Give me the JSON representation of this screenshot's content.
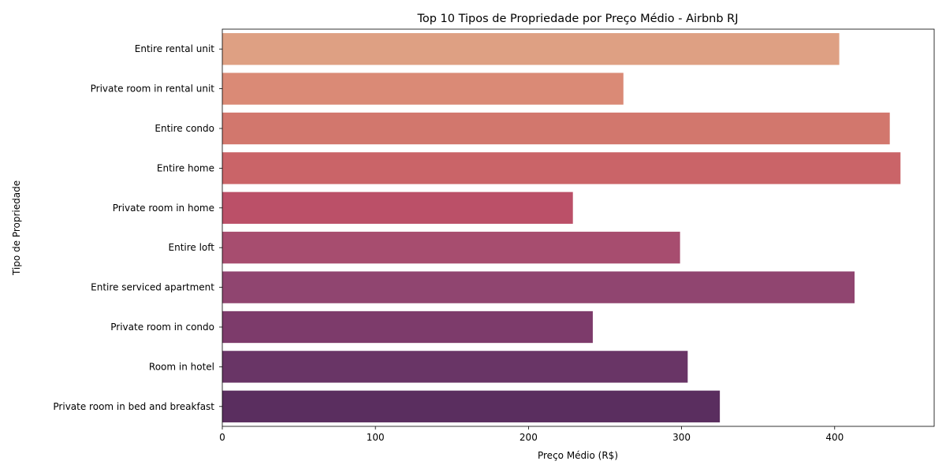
{
  "chart_data": {
    "type": "bar",
    "orientation": "horizontal",
    "title": "Top 10 Tipos de Propriedade por Preço Médio - Airbnb RJ",
    "xlabel": "Preço Médio (R$)",
    "ylabel": "Tipo de Propriedade",
    "xlim": [
      0,
      465
    ],
    "xticks": [
      0,
      100,
      200,
      300,
      400
    ],
    "categories": [
      "Entire rental unit",
      "Private room in rental unit",
      "Entire condo",
      "Entire home",
      "Private room in home",
      "Entire loft",
      "Entire serviced apartment",
      "Private room in condo",
      "Room in hotel",
      "Private room in bed and breakfast"
    ],
    "values": [
      403,
      262,
      436,
      443,
      229,
      299,
      413,
      242,
      304,
      325
    ],
    "colors": [
      "#dea083",
      "#da8a76",
      "#d2776d",
      "#ca6468",
      "#bb5068",
      "#a74d6f",
      "#904570",
      "#7d3b6b",
      "#693566",
      "#5a2e5f"
    ],
    "grid": false,
    "legend": "none"
  }
}
